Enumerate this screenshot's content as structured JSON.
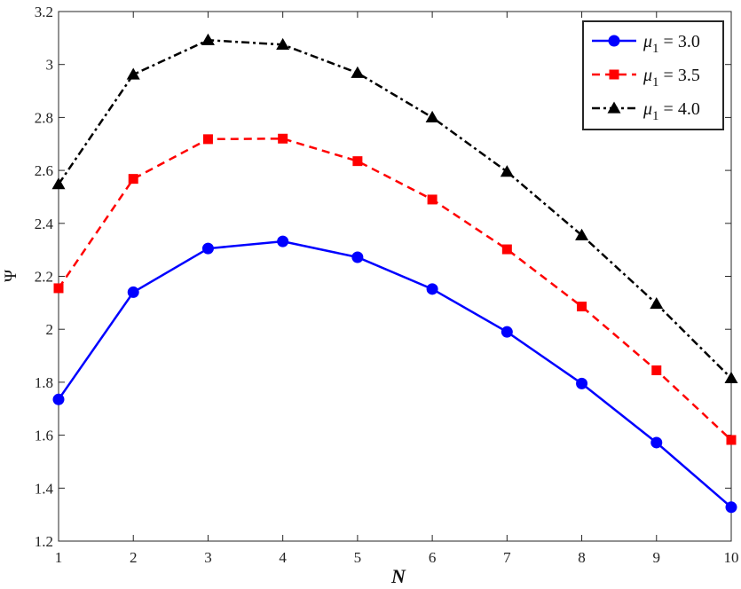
{
  "chart_data": {
    "type": "line",
    "title": "",
    "xlabel": "N",
    "ylabel": "Ψ",
    "xlim": [
      1,
      10
    ],
    "ylim": [
      1.2,
      3.2
    ],
    "xticks": [
      1,
      2,
      3,
      4,
      5,
      6,
      7,
      8,
      9,
      10
    ],
    "xtick_labels": [
      "1",
      "2",
      "3",
      "4",
      "5",
      "6",
      "7",
      "8",
      "9",
      "10"
    ],
    "yticks": [
      1.2,
      1.4,
      1.6,
      1.8,
      2.0,
      2.2,
      2.4,
      2.6,
      2.8,
      3.0,
      3.2
    ],
    "ytick_labels": [
      "1.2",
      "1.4",
      "1.6",
      "1.8",
      "2",
      "2.2",
      "2.4",
      "2.6",
      "2.8",
      "3",
      "3.2"
    ],
    "grid": false,
    "legend_position": "top-right",
    "x": [
      1,
      2,
      3,
      4,
      5,
      6,
      7,
      8,
      9,
      10
    ],
    "series": [
      {
        "name": "μ1 = 3.0",
        "legend_symbol": "μ",
        "legend_sub": "1",
        "legend_value": "= 3.0",
        "color": "#0000ff",
        "dash": "solid",
        "marker": "circle",
        "values": [
          1.735,
          2.14,
          2.305,
          2.332,
          2.272,
          2.152,
          1.99,
          1.795,
          1.572,
          1.328
        ]
      },
      {
        "name": "μ1 = 3.5",
        "legend_symbol": "μ",
        "legend_sub": "1",
        "legend_value": "= 3.5",
        "color": "#ff0000",
        "dash": "dashed",
        "marker": "square",
        "values": [
          2.155,
          2.568,
          2.718,
          2.72,
          2.635,
          2.49,
          2.302,
          2.086,
          1.845,
          1.582
        ]
      },
      {
        "name": "μ1 = 4.0",
        "legend_symbol": "μ",
        "legend_sub": "1",
        "legend_value": "= 4.0",
        "color": "#000000",
        "dash": "dashdot",
        "marker": "triangle",
        "values": [
          2.548,
          2.962,
          3.092,
          3.075,
          2.968,
          2.8,
          2.595,
          2.355,
          2.096,
          1.815
        ]
      }
    ]
  }
}
